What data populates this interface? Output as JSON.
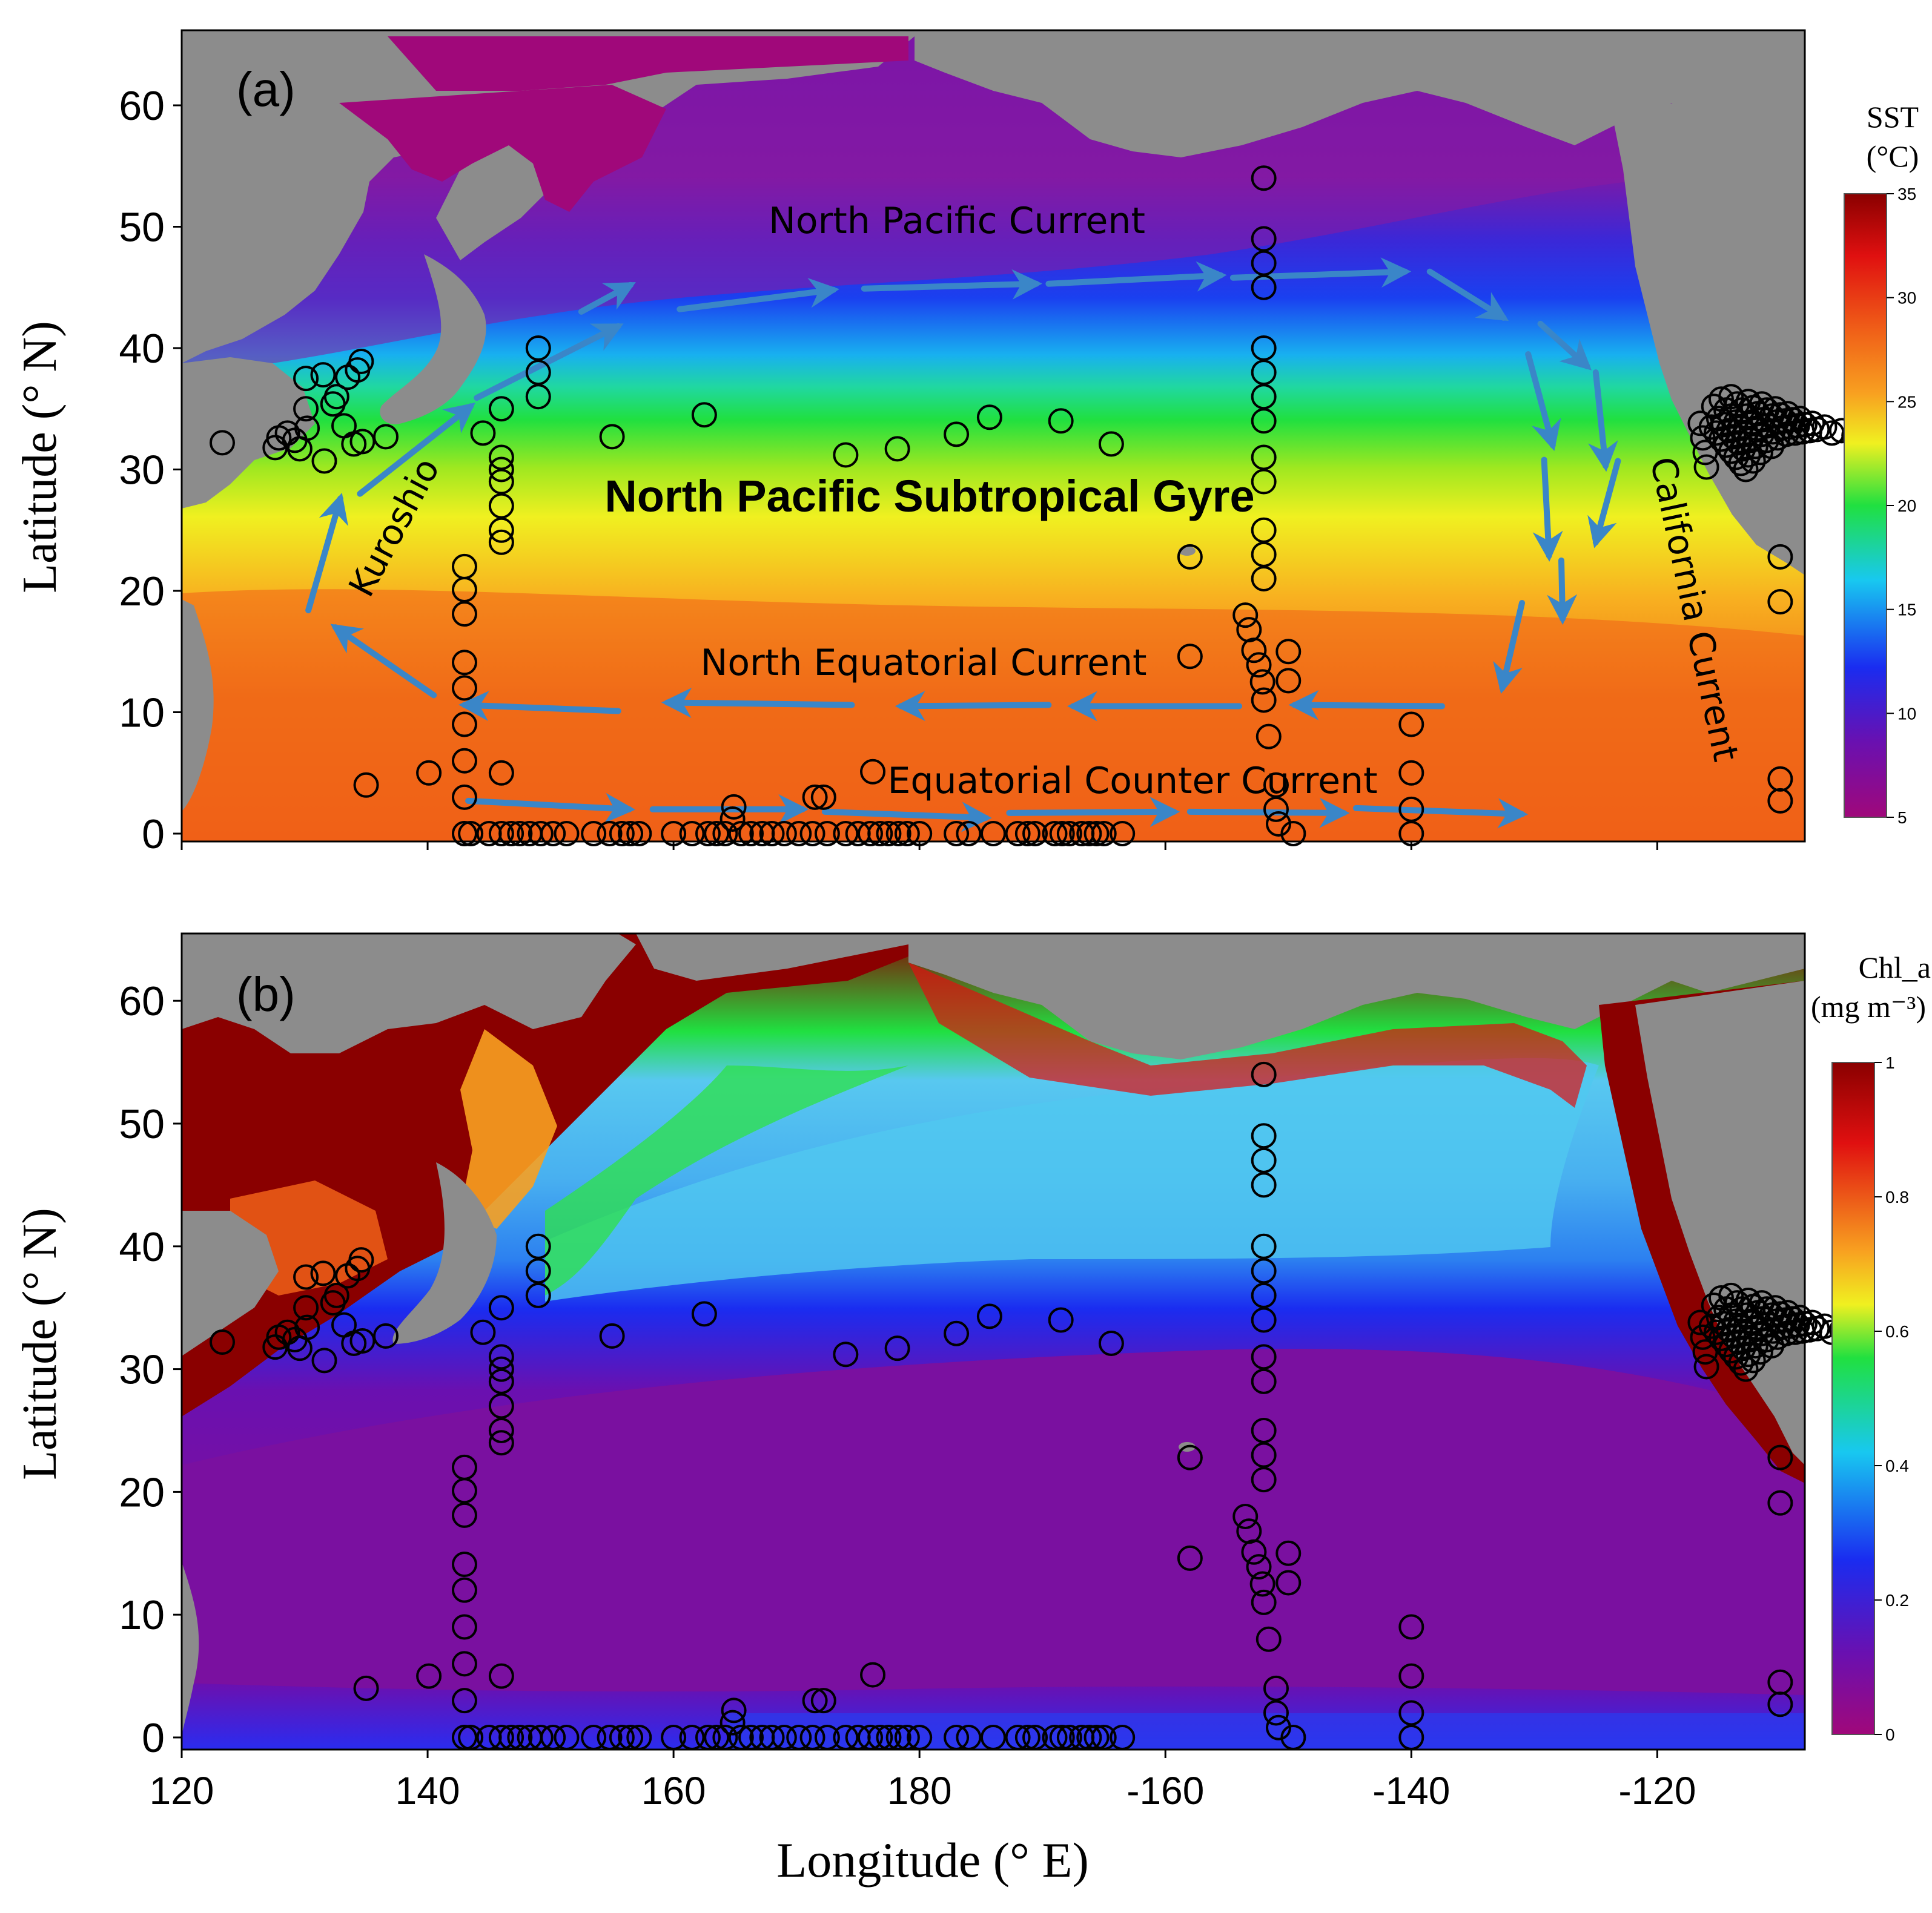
{
  "colors": {
    "land": "#8c8c8c",
    "arrow": "#3a86c8",
    "marker_stroke": "#000000",
    "sst_scale": [
      "#a0087a",
      "#6a10b0",
      "#1a2cf0",
      "#18c8f0",
      "#20e040",
      "#f0f020",
      "#f8a020",
      "#f06018",
      "#e01010",
      "#8a0000"
    ],
    "chl_scale": [
      "#a0087a",
      "#6a10b0",
      "#1a2cf0",
      "#18c8f0",
      "#20e040",
      "#f0f020",
      "#f8a020",
      "#e01010",
      "#8a0000"
    ]
  },
  "axes": {
    "ylabel": "Latitude (° N)",
    "xlabel": "Longitude (° E)",
    "y_ticks": [
      "0",
      "10",
      "20",
      "30",
      "40",
      "50",
      "60"
    ],
    "x_ticks": [
      "120",
      "140",
      "160",
      "180",
      "-160",
      "-140",
      "-120"
    ]
  },
  "panels": [
    {
      "id": "a",
      "label": "(a)",
      "colorbar": {
        "title_line1": "SST",
        "title_line2": "(°C)",
        "ticks": [
          "35",
          "30",
          "25",
          "20",
          "15",
          "10",
          "5"
        ]
      },
      "annotations": {
        "gyre": "North Pacific Subtropical Gyre",
        "npc": "North Pacific Current",
        "nec": "North Equatorial Current",
        "ecc": "Equatorial Counter Current",
        "kuroshio": "Kuroshio",
        "california": "California Current"
      }
    },
    {
      "id": "b",
      "label": "(b)",
      "colorbar": {
        "title_line1": "Chl_a",
        "title_line2": "(mg m⁻³)",
        "ticks": [
          "1",
          "0.8",
          "0.6",
          "0.4",
          "0.2",
          "0"
        ]
      }
    }
  ],
  "stations": [
    [
      123.3,
      32.2
    ],
    [
      127.6,
      31.8
    ],
    [
      127.9,
      32.6
    ],
    [
      128.6,
      33.0
    ],
    [
      129.2,
      32.4
    ],
    [
      129.6,
      31.7
    ],
    [
      130.2,
      33.4
    ],
    [
      130.1,
      35.0
    ],
    [
      130.1,
      37.5
    ],
    [
      131.5,
      37.8
    ],
    [
      131.6,
      30.7
    ],
    [
      132.3,
      35.4
    ],
    [
      132.6,
      36.0
    ],
    [
      133.2,
      33.6
    ],
    [
      133.5,
      37.6
    ],
    [
      134.0,
      32.1
    ],
    [
      134.3,
      38.2
    ],
    [
      134.6,
      38.9
    ],
    [
      134.7,
      32.3
    ],
    [
      135.0,
      4.0
    ],
    [
      136.6,
      32.7
    ],
    [
      140.1,
      5.0
    ],
    [
      143.0,
      22.0
    ],
    [
      143.0,
      20.1
    ],
    [
      143.0,
      18.1
    ],
    [
      143.0,
      14.1
    ],
    [
      143.0,
      12.0
    ],
    [
      143.0,
      9.0
    ],
    [
      143.0,
      6.0
    ],
    [
      143.0,
      3.0
    ],
    [
      143.0,
      0.0
    ],
    [
      144.5,
      33.0
    ],
    [
      146.0,
      35.0
    ],
    [
      146.0,
      31.0
    ],
    [
      146.0,
      30.0
    ],
    [
      146.0,
      29.0
    ],
    [
      146.0,
      27.0
    ],
    [
      146.0,
      25.0
    ],
    [
      146.0,
      24.0
    ],
    [
      146.0,
      5.0
    ],
    [
      149.0,
      36.0
    ],
    [
      149.0,
      38.0
    ],
    [
      149.0,
      40.0
    ],
    [
      155.0,
      32.7
    ],
    [
      162.5,
      34.5
    ],
    [
      164.9,
      2.2
    ],
    [
      164.8,
      1.2
    ],
    [
      171.5,
      3.0
    ],
    [
      172.2,
      3.0
    ],
    [
      174.0,
      31.2
    ],
    [
      176.2,
      5.1
    ],
    [
      178.2,
      31.7
    ],
    [
      183.0,
      32.9
    ],
    [
      185.7,
      34.3
    ],
    [
      191.5,
      34.0
    ],
    [
      195.6,
      32.1
    ],
    [
      202.0,
      22.8
    ],
    [
      202.0,
      14.6
    ],
    [
      206.5,
      18.0
    ],
    [
      206.8,
      16.8
    ],
    [
      207.2,
      15.1
    ],
    [
      207.6,
      13.9
    ],
    [
      207.9,
      12.5
    ],
    [
      208.0,
      54.0
    ],
    [
      208.0,
      49.0
    ],
    [
      208.0,
      47.0
    ],
    [
      208.0,
      45.0
    ],
    [
      208.0,
      40.0
    ],
    [
      208.0,
      38.0
    ],
    [
      208.0,
      36.0
    ],
    [
      208.0,
      34.0
    ],
    [
      208.0,
      31.0
    ],
    [
      208.0,
      29.0
    ],
    [
      208.0,
      25.0
    ],
    [
      208.0,
      23.0
    ],
    [
      208.0,
      21.0
    ],
    [
      208.0,
      11.0
    ],
    [
      208.4,
      8.0
    ],
    [
      209.0,
      4.0
    ],
    [
      209.0,
      2.0
    ],
    [
      209.2,
      0.8
    ],
    [
      210.0,
      15.0
    ],
    [
      210.0,
      12.6
    ],
    [
      210.4,
      0.0
    ],
    [
      220.0,
      9.0
    ],
    [
      220.0,
      5.0
    ],
    [
      220.0,
      2.0
    ],
    [
      220.0,
      0.0
    ],
    [
      250.0,
      22.8
    ],
    [
      250.0,
      19.1
    ],
    [
      250.0,
      4.5
    ],
    [
      250.0,
      2.7
    ],
    [
      143.5,
      0
    ],
    [
      145,
      0
    ],
    [
      146,
      0
    ],
    [
      146.8,
      0
    ],
    [
      147.5,
      0
    ],
    [
      148.3,
      0
    ],
    [
      149.2,
      0
    ],
    [
      150.2,
      0
    ],
    [
      151.3,
      0
    ],
    [
      153.5,
      0
    ],
    [
      154.8,
      0
    ],
    [
      155.8,
      0
    ],
    [
      156.5,
      0
    ],
    [
      157.2,
      0
    ],
    [
      160,
      0
    ],
    [
      161.5,
      0
    ],
    [
      162.8,
      0
    ],
    [
      163.5,
      0
    ],
    [
      164.2,
      0
    ],
    [
      165.5,
      0
    ],
    [
      166.3,
      0
    ],
    [
      167.2,
      0
    ],
    [
      168,
      0
    ],
    [
      169,
      0
    ],
    [
      170.2,
      0
    ],
    [
      171.3,
      0
    ],
    [
      172.5,
      0
    ],
    [
      174,
      0
    ],
    [
      175,
      0
    ],
    [
      176,
      0
    ],
    [
      176.8,
      0
    ],
    [
      177.5,
      0
    ],
    [
      178.3,
      0
    ],
    [
      179,
      0
    ],
    [
      180,
      0
    ],
    [
      183,
      0
    ],
    [
      184,
      0
    ],
    [
      186,
      0
    ],
    [
      188,
      0
    ],
    [
      188.8,
      0
    ],
    [
      189.4,
      0
    ],
    [
      191,
      0
    ],
    [
      191.6,
      0
    ],
    [
      192.2,
      0
    ],
    [
      193.2,
      0
    ],
    [
      193.8,
      0
    ],
    [
      194.4,
      0
    ],
    [
      195,
      0
    ],
    [
      196.5,
      0
    ],
    [
      244.4,
      33.5
    ],
    [
      244.8,
      33.0
    ],
    [
      245.2,
      32.5
    ],
    [
      245.6,
      32.0
    ],
    [
      246.0,
      31.5
    ],
    [
      246.4,
      31.0
    ],
    [
      246.8,
      30.5
    ],
    [
      247.2,
      30.0
    ],
    [
      245.0,
      34.2
    ],
    [
      245.4,
      33.7
    ],
    [
      245.8,
      33.2
    ],
    [
      246.2,
      32.7
    ],
    [
      246.6,
      32.2
    ],
    [
      247.0,
      31.7
    ],
    [
      247.4,
      31.2
    ],
    [
      247.8,
      30.7
    ],
    [
      245.6,
      34.9
    ],
    [
      246.0,
      34.4
    ],
    [
      246.4,
      33.9
    ],
    [
      246.8,
      33.4
    ],
    [
      247.2,
      32.9
    ],
    [
      247.6,
      32.4
    ],
    [
      248.0,
      31.9
    ],
    [
      248.4,
      31.4
    ],
    [
      246.5,
      35.4
    ],
    [
      246.9,
      34.9
    ],
    [
      247.3,
      34.4
    ],
    [
      247.7,
      33.9
    ],
    [
      248.1,
      33.4
    ],
    [
      248.5,
      32.9
    ],
    [
      248.9,
      32.4
    ],
    [
      249.3,
      31.9
    ],
    [
      247.4,
      35.6
    ],
    [
      247.8,
      35.1
    ],
    [
      248.2,
      34.6
    ],
    [
      248.6,
      34.1
    ],
    [
      249.0,
      33.6
    ],
    [
      249.4,
      33.1
    ],
    [
      249.8,
      32.6
    ],
    [
      248.5,
      35.4
    ],
    [
      248.9,
      34.9
    ],
    [
      249.3,
      34.4
    ],
    [
      249.7,
      33.9
    ],
    [
      250.1,
      33.4
    ],
    [
      250.5,
      32.9
    ],
    [
      249.6,
      35.0
    ],
    [
      250.0,
      34.5
    ],
    [
      250.4,
      34.0
    ],
    [
      250.8,
      33.5
    ],
    [
      251.2,
      33.0
    ],
    [
      250.6,
      34.6
    ],
    [
      251.0,
      34.1
    ],
    [
      251.4,
      33.6
    ],
    [
      251.8,
      33.1
    ],
    [
      251.6,
      34.2
    ],
    [
      252.0,
      33.7
    ],
    [
      252.4,
      33.2
    ],
    [
      252.6,
      33.8
    ],
    [
      253.0,
      33.3
    ],
    [
      253.6,
      33.5
    ],
    [
      254.2,
      33.0
    ],
    [
      255.0,
      33.2
    ],
    [
      256.0,
      32.8
    ],
    [
      244.0,
      30.2
    ],
    [
      243.5,
      33.8
    ],
    [
      243.7,
      32.6
    ],
    [
      243.9,
      31.4
    ],
    [
      244.6,
      35.2
    ],
    [
      245.2,
      35.8
    ],
    [
      246.0,
      36.0
    ]
  ],
  "currents": [
    [
      [
        152.5,
        43.0
      ],
      [
        156.5,
        45.2
      ]
    ],
    [
      [
        160.5,
        43.2
      ],
      [
        173.0,
        44.8
      ]
    ],
    [
      [
        175.5,
        44.9
      ],
      [
        189.5,
        45.3
      ]
    ],
    [
      [
        190.5,
        45.3
      ],
      [
        204.5,
        46.0
      ]
    ],
    [
      [
        205.5,
        45.8
      ],
      [
        219.5,
        46.3
      ]
    ],
    [
      [
        221.5,
        46.3
      ],
      [
        227.5,
        42.5
      ]
    ],
    [
      [
        230.5,
        42.0
      ],
      [
        234.3,
        38.5
      ]
    ],
    [
      [
        229.5,
        39.5
      ],
      [
        231.5,
        32.0
      ]
    ],
    [
      [
        235.0,
        38.0
      ],
      [
        235.8,
        30.3
      ]
    ],
    [
      [
        230.8,
        30.8
      ],
      [
        231.2,
        22.9
      ]
    ],
    [
      [
        236.8,
        30.7
      ],
      [
        235.0,
        24.0
      ]
    ],
    [
      [
        232.2,
        22.5
      ],
      [
        232.3,
        17.7
      ]
    ],
    [
      [
        229.0,
        19.0
      ],
      [
        227.4,
        12.0
      ]
    ],
    [
      [
        222.5,
        10.5
      ],
      [
        210.5,
        10.6
      ]
    ],
    [
      [
        206.0,
        10.5
      ],
      [
        192.5,
        10.5
      ]
    ],
    [
      [
        190.5,
        10.6
      ],
      [
        178.5,
        10.5
      ]
    ],
    [
      [
        174.5,
        10.6
      ],
      [
        159.5,
        10.8
      ]
    ],
    [
      [
        155.5,
        10.1
      ],
      [
        143.0,
        10.6
      ]
    ],
    [
      [
        140.5,
        11.4
      ],
      [
        132.5,
        17.0
      ]
    ],
    [
      [
        130.3,
        18.4
      ],
      [
        132.9,
        27.6
      ]
    ],
    [
      [
        134.5,
        28.0
      ],
      [
        143.5,
        35.2
      ]
    ],
    [
      [
        144.0,
        35.9
      ],
      [
        155.5,
        41.8
      ]
    ],
    [
      [
        143.3,
        2.7
      ],
      [
        156.4,
        2.0
      ]
    ],
    [
      [
        158.3,
        2.0
      ],
      [
        170.5,
        2.0
      ]
    ],
    [
      [
        172.3,
        1.8
      ],
      [
        185.4,
        1.3
      ]
    ],
    [
      [
        187.3,
        1.7
      ],
      [
        200.7,
        1.8
      ]
    ],
    [
      [
        202.0,
        1.8
      ],
      [
        214.5,
        1.7
      ]
    ],
    [
      [
        215.5,
        2.1
      ],
      [
        229.0,
        1.6
      ]
    ]
  ]
}
